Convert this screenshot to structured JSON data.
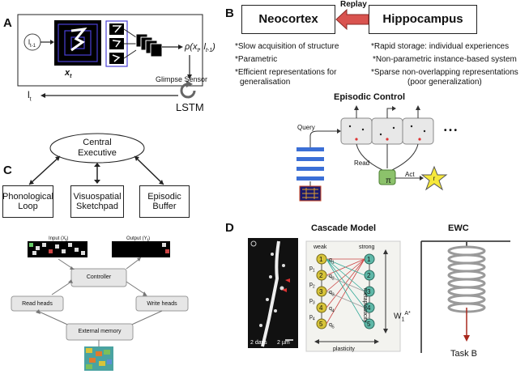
{
  "panel_labels": {
    "a": "A",
    "b": "B",
    "c": "C",
    "d": "D"
  },
  "panel_a": {
    "input_label": "l",
    "input_sub": "t-1",
    "x_label": "x",
    "x_sub": "t",
    "glimpse_sensor": "Glimpse Sensor",
    "rho_label": "ρ(x",
    "rho_sub": "t",
    "rho_mid": ", l",
    "rho_sub2": "t-1",
    "rho_end": ")",
    "lstm": "LSTM",
    "output_label": "l",
    "output_sub": "t"
  },
  "panel_b": {
    "neocortex": "Neocortex",
    "hippocampus": "Hippocampus",
    "replay": "Replay",
    "neocortex_points": [
      "*Slow acquisition of structure",
      "*Parametric",
      "*Efficient representations for",
      "generalisation"
    ],
    "hippocampus_points": [
      "*Rapid storage: individual experiences",
      "*Non-parametric instance-based system",
      "*Sparse non-overlapping representations",
      "(poor generalization)"
    ],
    "episodic_control": "Episodic Control",
    "query": "Query",
    "read": "Read",
    "act": "Act",
    "pi": "π",
    "ellipsis": "• • •",
    "reward": "r"
  },
  "panel_c": {
    "central_executive_1": "Central",
    "central_executive_2": "Executive",
    "phonological_1": "Phonological",
    "phonological_2": "Loop",
    "visuospatial_1": "Visuospatial",
    "visuospatial_2": "Sketchpad",
    "episodic_1": "Episodic",
    "episodic_2": "Buffer",
    "input": "Input (X",
    "input_sub": "t",
    "output": "Output (Y",
    "output_sub": "t",
    "controller": "Controller",
    "read_heads": "Read heads",
    "write_heads": "Write heads",
    "external_memory": "External memory"
  },
  "panel_d": {
    "micro_days": "2 days",
    "micro_scale": "2 µm",
    "cascade_title": "Cascade Model",
    "weak": "weak",
    "strong": "strong",
    "metaplasticity": "metaplasticity",
    "plasticity": "plasticity",
    "ewc_title": "EWC",
    "w_label": "W",
    "w_sub": "1",
    "w_sup": "A*",
    "task_b": "Task B",
    "weak_nodes": [
      "1",
      "2",
      "3",
      "4",
      "5"
    ],
    "strong_nodes": [
      "1",
      "2",
      "3",
      "4",
      "5"
    ],
    "p_labels": [
      "p",
      "p",
      "p",
      "p"
    ],
    "p_subs": [
      "1",
      "2",
      "3",
      "4"
    ],
    "q_labels": [
      "q",
      "q",
      "q",
      "q",
      "q"
    ],
    "q_subs": [
      "1",
      "2",
      "3",
      "4",
      "5"
    ]
  },
  "colors": {
    "replay_arrow": "#d9534f",
    "blue_layers": "#3b6fd6",
    "green_pi": "#8cc26b",
    "star": "#f6e83a",
    "weak_node": "#d7c43a",
    "strong_node": "#5fb8a8",
    "spring": "#9a9a9a",
    "task_arrow": "#a8281d"
  }
}
